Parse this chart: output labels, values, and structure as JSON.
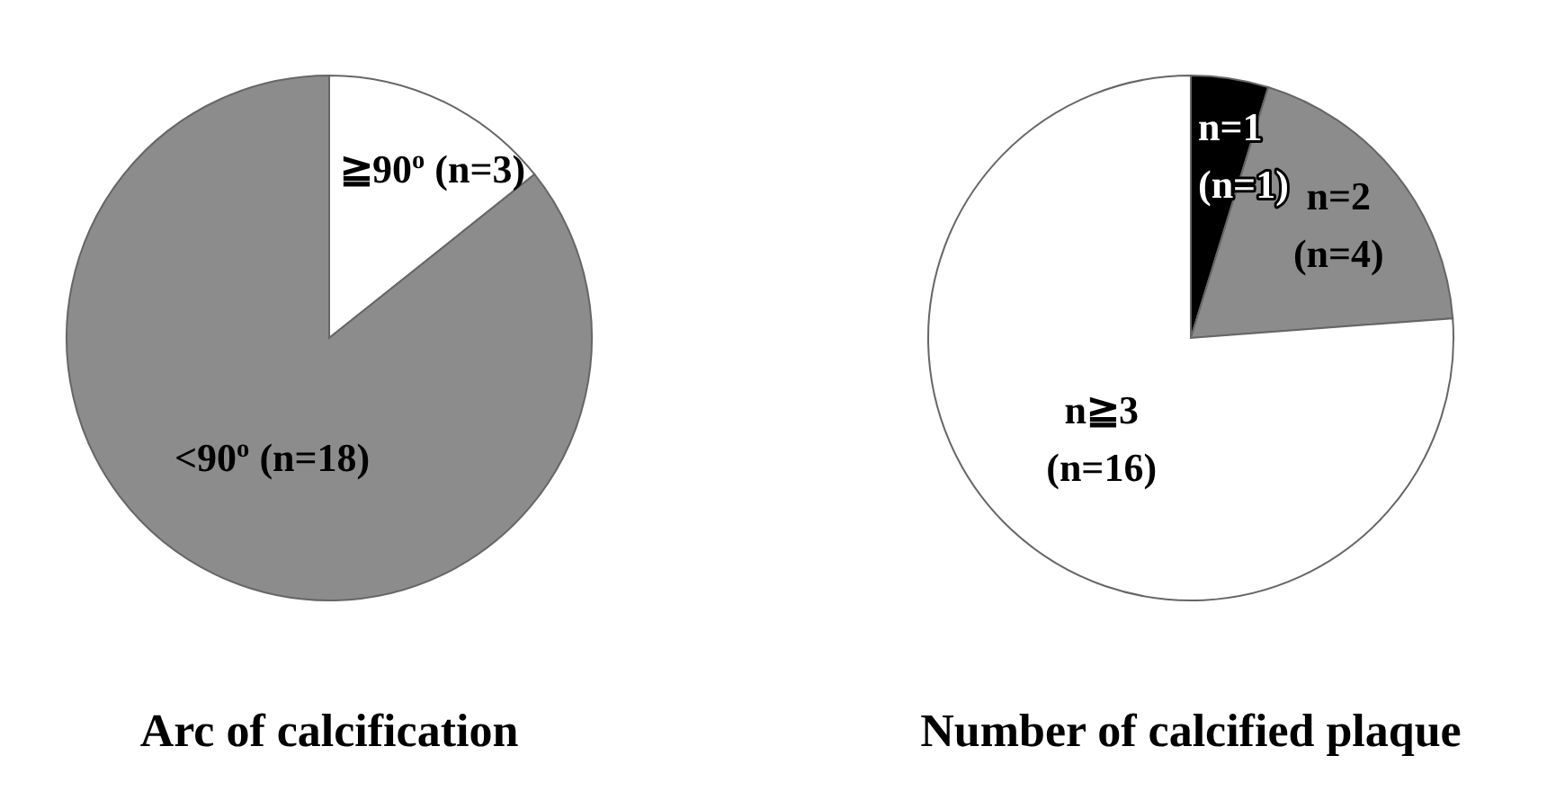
{
  "chart_data": [
    {
      "type": "pie",
      "title": "Arc of calcification",
      "categories": [
        "≧90$^{o}$",
        "<90$^{o}$"
      ],
      "values": [
        3,
        18
      ],
      "value_labels": [
        "(n=3)",
        "(n=18)"
      ],
      "colors": [
        "#ffffff",
        "#8c8c8c"
      ]
    },
    {
      "type": "pie",
      "title": "Number of calcified plaque",
      "categories": [
        "n=1",
        "n=2",
        "n≧3"
      ],
      "values": [
        1,
        4,
        16
      ],
      "value_labels": [
        "(n=1)",
        "(n=4)",
        "(n=16)"
      ],
      "colors": [
        "#000000",
        "#8c8c8c",
        "#ffffff"
      ]
    }
  ]
}
